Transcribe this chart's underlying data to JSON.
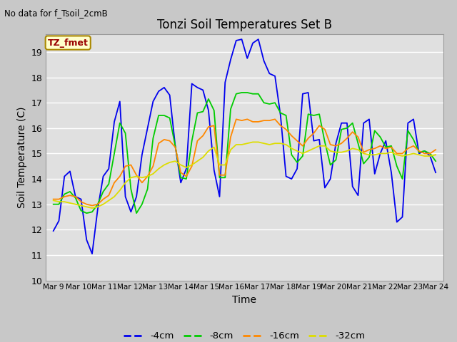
{
  "title": "Tonzi Soil Temperatures Set B",
  "subtitle": "No data for f_Tsoil_2cmB",
  "xlabel": "Time",
  "ylabel": "Soil Temperature (C)",
  "ylim": [
    10.0,
    19.7
  ],
  "yticks": [
    10.0,
    11.0,
    12.0,
    13.0,
    14.0,
    15.0,
    16.0,
    17.0,
    18.0,
    19.0
  ],
  "xtick_labels": [
    "Mar 9",
    "Mar 10",
    "Mar 11",
    "Mar 12",
    "Mar 13",
    "Mar 14",
    "Mar 15",
    "Mar 16",
    "Mar 17",
    "Mar 18",
    "Mar 19",
    "Mar 20",
    "Mar 21",
    "Mar 22",
    "Mar 23",
    "Mar 24"
  ],
  "colors": {
    "4cm": "#0000EE",
    "8cm": "#00CC00",
    "16cm": "#FF8800",
    "32cm": "#DDDD00"
  },
  "legend_label_box_color": "#FFFFCC",
  "legend_label_text_color": "#990000",
  "legend_label_text": "TZ_fmet",
  "fig_bg_color": "#C8C8C8",
  "plot_bg_color": "#E0E0E0",
  "grid_color": "#FFFFFF",
  "series": {
    "4cm": [
      11.95,
      12.35,
      14.1,
      14.3,
      13.3,
      13.2,
      11.6,
      11.05,
      12.8,
      14.1,
      14.4,
      16.25,
      17.05,
      13.3,
      12.7,
      13.3,
      14.95,
      16.0,
      17.05,
      17.45,
      17.6,
      17.3,
      15.3,
      13.85,
      14.4,
      17.75,
      17.6,
      17.5,
      16.7,
      14.35,
      13.3,
      17.8,
      18.7,
      19.45,
      19.5,
      18.75,
      19.35,
      19.5,
      18.65,
      18.15,
      18.05,
      16.5,
      14.1,
      14.0,
      14.4,
      17.35,
      17.4,
      15.5,
      15.55,
      13.65,
      14.0,
      15.4,
      16.2,
      16.2,
      13.7,
      13.35,
      16.2,
      16.35,
      14.2,
      15.0,
      15.5,
      14.25,
      12.3,
      12.5,
      16.2,
      16.35,
      15.0,
      15.1,
      14.9,
      14.25
    ],
    "8cm": [
      13.0,
      13.0,
      13.4,
      13.5,
      13.25,
      12.75,
      12.65,
      12.7,
      13.0,
      13.5,
      13.8,
      15.0,
      16.2,
      15.8,
      13.6,
      12.65,
      13.0,
      13.6,
      15.6,
      16.5,
      16.5,
      16.4,
      15.3,
      14.05,
      14.0,
      15.5,
      16.6,
      16.65,
      17.15,
      16.7,
      14.05,
      14.05,
      16.75,
      17.35,
      17.4,
      17.4,
      17.35,
      17.35,
      17.0,
      16.95,
      17.0,
      16.6,
      16.5,
      14.95,
      14.65,
      14.9,
      16.55,
      16.5,
      16.55,
      15.45,
      14.55,
      14.75,
      15.95,
      16.0,
      16.2,
      15.4,
      14.6,
      14.85,
      15.9,
      15.65,
      15.25,
      15.3,
      14.5,
      14.0,
      15.9,
      15.55,
      15.05,
      15.1,
      15.0,
      14.7
    ],
    "16cm": [
      13.2,
      13.2,
      13.3,
      13.35,
      13.3,
      13.1,
      13.0,
      12.95,
      13.0,
      13.2,
      13.35,
      13.85,
      14.1,
      14.5,
      14.55,
      14.15,
      13.85,
      14.1,
      14.5,
      15.4,
      15.55,
      15.5,
      15.25,
      14.25,
      14.1,
      14.5,
      15.5,
      15.7,
      16.05,
      16.1,
      14.15,
      14.15,
      15.65,
      16.35,
      16.3,
      16.35,
      16.25,
      16.25,
      16.3,
      16.3,
      16.35,
      16.1,
      15.95,
      15.7,
      15.5,
      15.3,
      15.6,
      15.8,
      16.1,
      15.95,
      15.35,
      15.3,
      15.4,
      15.6,
      15.85,
      15.65,
      15.05,
      15.15,
      15.2,
      15.3,
      15.2,
      15.25,
      15.0,
      15.0,
      15.2,
      15.3,
      15.1,
      15.0,
      15.0,
      15.15
    ],
    "32cm": [
      13.15,
      13.1,
      13.1,
      13.05,
      13.0,
      12.95,
      12.9,
      12.85,
      12.9,
      13.0,
      13.15,
      13.3,
      13.55,
      13.85,
      14.05,
      14.1,
      14.05,
      14.1,
      14.2,
      14.4,
      14.55,
      14.65,
      14.7,
      14.55,
      14.45,
      14.55,
      14.7,
      14.85,
      15.1,
      15.25,
      14.55,
      14.55,
      15.15,
      15.35,
      15.35,
      15.4,
      15.45,
      15.45,
      15.4,
      15.35,
      15.4,
      15.4,
      15.35,
      15.2,
      15.1,
      15.0,
      15.1,
      15.2,
      15.3,
      15.3,
      15.1,
      15.05,
      15.05,
      15.1,
      15.2,
      15.15,
      15.0,
      14.95,
      14.95,
      15.0,
      15.0,
      15.05,
      14.95,
      14.9,
      14.95,
      15.0,
      14.95,
      14.9,
      14.9,
      14.95
    ]
  }
}
